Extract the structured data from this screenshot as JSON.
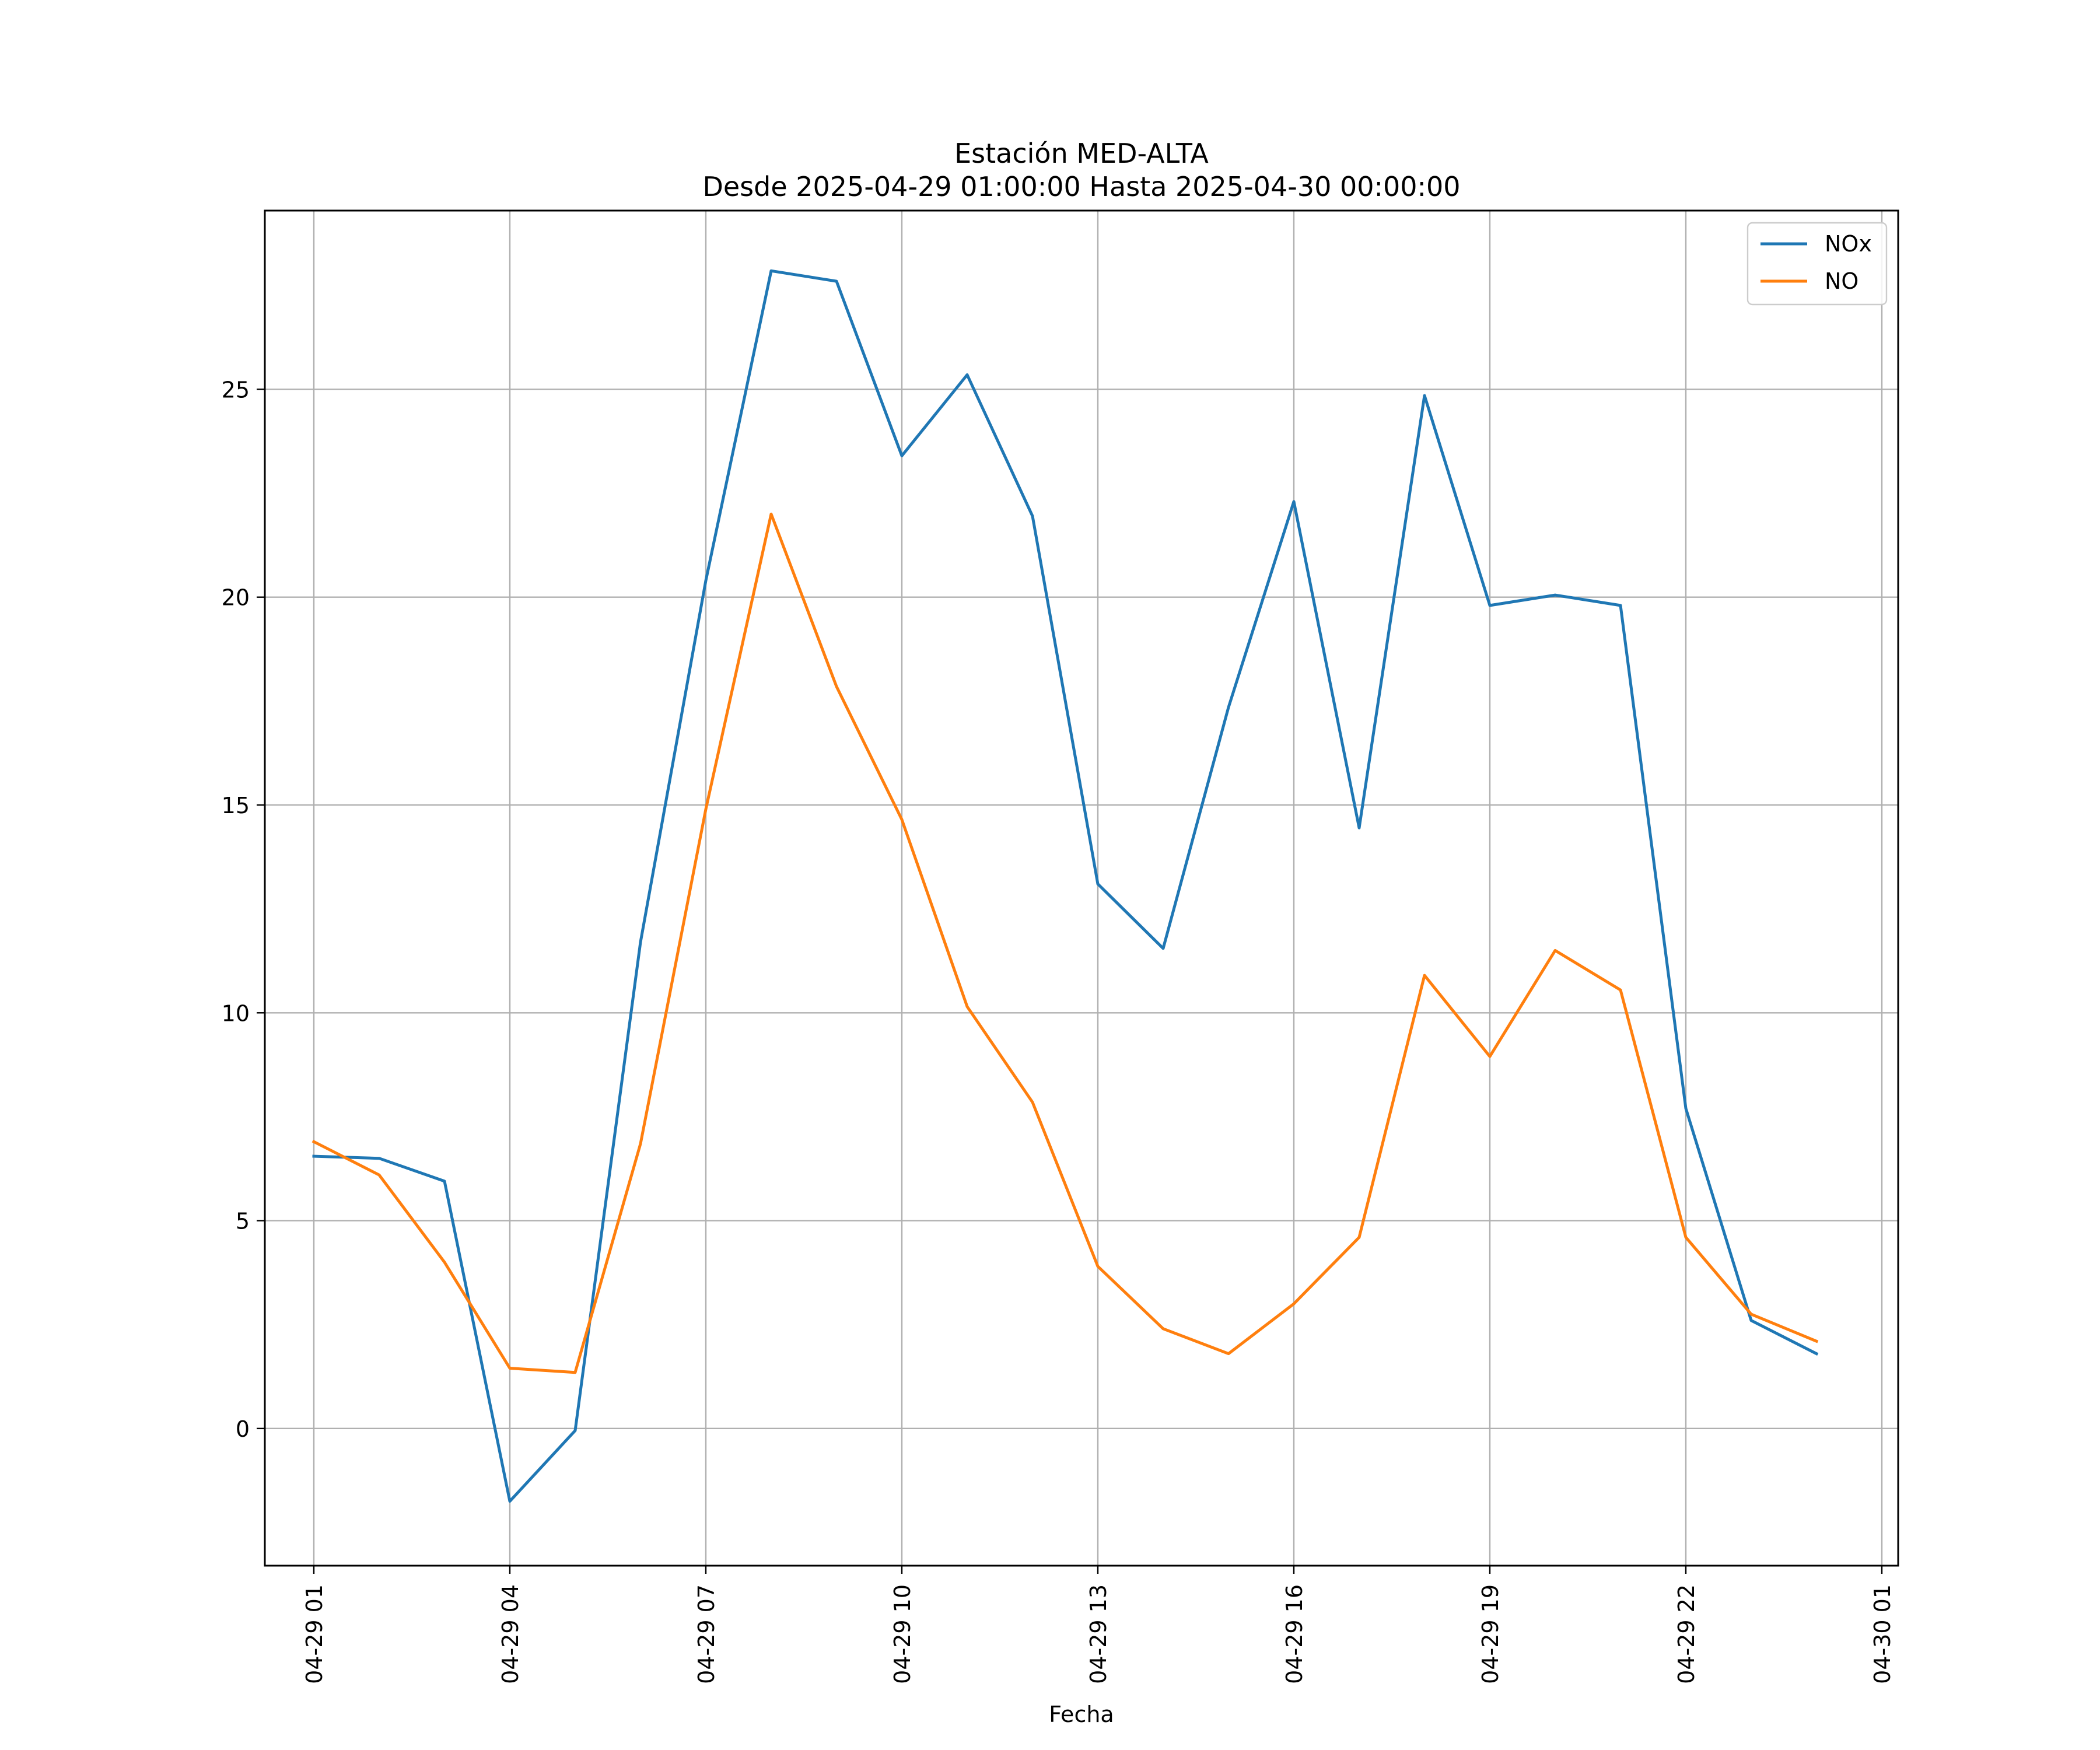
{
  "chart_data": {
    "type": "line",
    "title": "Estación MED-ALTA",
    "subtitle": "Desde 2025-04-29 01:00:00 Hasta 2025-04-30 00:00:00",
    "xlabel": "Fecha",
    "ylabel": "",
    "x": [
      "2025-04-29 01:00",
      "2025-04-29 02:00",
      "2025-04-29 03:00",
      "2025-04-29 04:00",
      "2025-04-29 05:00",
      "2025-04-29 06:00",
      "2025-04-29 07:00",
      "2025-04-29 08:00",
      "2025-04-29 09:00",
      "2025-04-29 10:00",
      "2025-04-29 11:00",
      "2025-04-29 12:00",
      "2025-04-29 13:00",
      "2025-04-29 14:00",
      "2025-04-29 15:00",
      "2025-04-29 16:00",
      "2025-04-29 17:00",
      "2025-04-29 18:00",
      "2025-04-29 19:00",
      "2025-04-29 20:00",
      "2025-04-29 21:00",
      "2025-04-29 22:00",
      "2025-04-29 23:00",
      "2025-04-30 00:00"
    ],
    "series": [
      {
        "name": "NOx",
        "color": "#1f77b4",
        "values": [
          6.55,
          6.5,
          5.95,
          -1.75,
          -0.05,
          11.7,
          20.4,
          27.85,
          27.6,
          23.4,
          25.35,
          21.95,
          13.1,
          11.55,
          17.35,
          22.3,
          14.45,
          24.85,
          19.8,
          20.05,
          19.8,
          7.7,
          2.6,
          1.8
        ]
      },
      {
        "name": "NO",
        "color": "#ff7f0e",
        "values": [
          6.9,
          6.1,
          4.0,
          1.45,
          1.35,
          6.85,
          14.9,
          22.0,
          17.85,
          14.65,
          10.15,
          7.85,
          3.9,
          2.4,
          1.8,
          3.0,
          4.6,
          10.9,
          8.95,
          11.5,
          10.55,
          4.6,
          2.75,
          2.1
        ]
      }
    ],
    "ylim": [
      -3.3,
      29.3
    ],
    "xlim": [
      "2025-04-29 00:15",
      "2025-04-30 01:15"
    ],
    "yticks": [
      0,
      5,
      10,
      15,
      20,
      25
    ],
    "ytick_labels": [
      "0",
      "5",
      "10",
      "15",
      "20",
      "25"
    ],
    "xticks": [
      "2025-04-29 01:00",
      "2025-04-29 04:00",
      "2025-04-29 07:00",
      "2025-04-29 10:00",
      "2025-04-29 13:00",
      "2025-04-29 16:00",
      "2025-04-29 19:00",
      "2025-04-29 22:00",
      "2025-04-30 01:00"
    ],
    "xtick_labels": [
      "04-29 01",
      "04-29 04",
      "04-29 07",
      "04-29 10",
      "04-29 13",
      "04-29 16",
      "04-29 19",
      "04-29 22",
      "04-30 01"
    ],
    "grid": true,
    "legend_position": "top-right"
  }
}
